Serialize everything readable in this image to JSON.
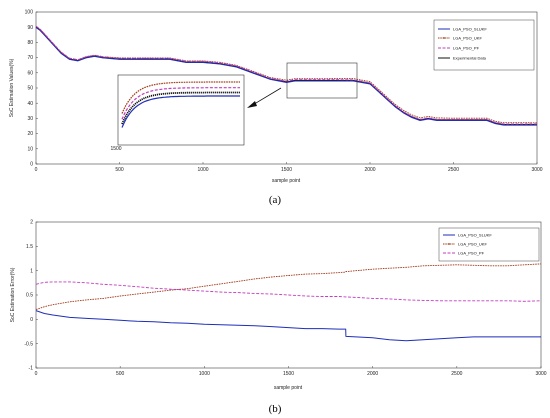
{
  "figure": {
    "caption_a": "(a)",
    "caption_b": "(b)"
  },
  "colors": {
    "slukf": "#1f2fb8",
    "ukf": "#a33a1a",
    "pf": "#c13dc1",
    "experimental": "#111111"
  },
  "chart_data": [
    {
      "type": "line",
      "id": "a",
      "title": "",
      "xlabel": "sample point",
      "ylabel": "SoC Estimation Values(%)",
      "xlim": [
        0,
        3000
      ],
      "ylim": [
        0,
        100
      ],
      "xticks": [
        0,
        500,
        1000,
        1500,
        2000,
        2500,
        3000
      ],
      "yticks": [
        0,
        10,
        20,
        30,
        40,
        50,
        60,
        70,
        80,
        90,
        100
      ],
      "grid": false,
      "legend_position": "top-right",
      "legend": [
        "LGA_PSO_SLUKF",
        "LGA_PSO_UKF",
        "LGA_PSO_PF",
        "Experimental Data"
      ],
      "x": [
        0,
        25,
        50,
        100,
        150,
        200,
        250,
        300,
        350,
        400,
        500,
        600,
        700,
        800,
        900,
        1000,
        1100,
        1200,
        1300,
        1400,
        1500,
        1550,
        1600,
        1700,
        1800,
        1900,
        2000,
        2050,
        2100,
        2150,
        2200,
        2250,
        2300,
        2350,
        2400,
        2500,
        2600,
        2700,
        2750,
        2800,
        2900,
        3000
      ],
      "series": [
        {
          "name": "Experimental Data",
          "values": [
            90,
            88,
            85,
            79,
            73,
            69,
            68,
            70,
            71,
            70,
            69,
            69,
            69,
            69,
            67,
            67,
            66,
            64,
            60,
            56,
            54,
            55,
            55,
            55,
            55,
            55,
            53,
            48,
            43,
            38,
            34,
            31,
            29,
            30,
            29,
            29,
            29,
            29,
            27,
            26,
            26,
            26
          ]
        },
        {
          "name": "LGA_PSO_SLUKF",
          "values": [
            89.8,
            87.8,
            84.8,
            78.8,
            72.8,
            68.8,
            67.8,
            69.8,
            70.8,
            69.8,
            68.8,
            68.8,
            68.8,
            68.8,
            66.8,
            66.8,
            65.8,
            63.8,
            59.8,
            55.8,
            53.6,
            54.6,
            54.6,
            54.6,
            54.6,
            54.6,
            52.6,
            47.6,
            42.6,
            37.6,
            33.6,
            30.6,
            28.6,
            29.6,
            28.6,
            28.6,
            28.6,
            28.6,
            26.6,
            25.6,
            25.6,
            25.6
          ]
        },
        {
          "name": "LGA_PSO_UKF",
          "values": [
            90.6,
            88.6,
            85.6,
            79.6,
            73.6,
            69.6,
            68.6,
            70.6,
            71.6,
            70.6,
            69.8,
            69.8,
            69.8,
            69.8,
            67.8,
            67.8,
            66.9,
            64.9,
            61.0,
            57.0,
            55.1,
            56.1,
            56.1,
            56.1,
            56.2,
            56.2,
            54.2,
            49.2,
            44.2,
            39.2,
            35.3,
            32.3,
            30.3,
            31.3,
            30.3,
            30.1,
            30.1,
            30.1,
            28.1,
            27.2,
            27.2,
            27.1
          ]
        },
        {
          "name": "LGA_PSO_PF",
          "values": [
            90.7,
            88.7,
            85.7,
            79.7,
            73.7,
            69.7,
            68.6,
            70.6,
            71.6,
            70.6,
            69.6,
            69.6,
            69.6,
            69.6,
            67.6,
            67.6,
            66.6,
            64.6,
            60.6,
            56.5,
            54.5,
            55.5,
            55.5,
            55.5,
            55.5,
            55.4,
            53.4,
            48.4,
            43.4,
            38.4,
            34.4,
            31.4,
            29.4,
            30.4,
            29.4,
            29.4,
            29.4,
            29.4,
            27.4,
            26.4,
            26.4,
            26.4
          ]
        }
      ],
      "inset": {
        "source_region": {
          "x": [
            1500,
            1950
          ],
          "y": [
            40,
            60
          ]
        },
        "xtick_label": "1500"
      }
    },
    {
      "type": "line",
      "id": "b",
      "title": "",
      "xlabel": "sample point",
      "ylabel": "SoC Estimation Error(%)",
      "xlim": [
        0,
        3000
      ],
      "ylim": [
        -1,
        2
      ],
      "xticks": [
        0,
        500,
        1000,
        1500,
        2000,
        2500,
        3000
      ],
      "yticks": [
        -1,
        -0.5,
        0,
        0.5,
        1,
        1.5,
        2
      ],
      "grid": false,
      "legend_position": "top-right",
      "legend": [
        "LGA_PSO_SLUKF",
        "LGA_PSO_UKF",
        "LGA_PSO_PF"
      ],
      "x": [
        0,
        50,
        100,
        200,
        300,
        400,
        500,
        600,
        700,
        800,
        900,
        1000,
        1100,
        1200,
        1300,
        1400,
        1500,
        1600,
        1700,
        1800,
        1840,
        1841,
        1900,
        2000,
        2100,
        2200,
        2300,
        2400,
        2500,
        2600,
        2700,
        2800,
        2900,
        3000
      ],
      "series": [
        {
          "name": "LGA_PSO_SLUKF",
          "values": [
            0.18,
            0.12,
            0.09,
            0.04,
            0.02,
            0.0,
            -0.02,
            -0.04,
            -0.05,
            -0.07,
            -0.08,
            -0.1,
            -0.11,
            -0.12,
            -0.13,
            -0.15,
            -0.17,
            -0.19,
            -0.19,
            -0.2,
            -0.2,
            -0.35,
            -0.36,
            -0.38,
            -0.42,
            -0.44,
            -0.42,
            -0.4,
            -0.38,
            -0.36,
            -0.36,
            -0.36,
            -0.36,
            -0.36
          ]
        },
        {
          "name": "LGA_PSO_UKF",
          "values": [
            0.2,
            0.26,
            0.3,
            0.36,
            0.4,
            0.43,
            0.48,
            0.52,
            0.56,
            0.6,
            0.63,
            0.68,
            0.73,
            0.78,
            0.83,
            0.87,
            0.9,
            0.93,
            0.94,
            0.96,
            0.97,
            0.98,
            1.0,
            1.03,
            1.05,
            1.07,
            1.1,
            1.11,
            1.12,
            1.11,
            1.1,
            1.1,
            1.12,
            1.14
          ]
        },
        {
          "name": "LGA_PSO_PF",
          "values": [
            0.72,
            0.76,
            0.77,
            0.77,
            0.75,
            0.72,
            0.7,
            0.67,
            0.64,
            0.62,
            0.6,
            0.58,
            0.56,
            0.55,
            0.53,
            0.52,
            0.5,
            0.48,
            0.47,
            0.47,
            0.46,
            0.46,
            0.45,
            0.43,
            0.42,
            0.4,
            0.39,
            0.38,
            0.38,
            0.38,
            0.38,
            0.38,
            0.37,
            0.38
          ]
        }
      ]
    }
  ]
}
